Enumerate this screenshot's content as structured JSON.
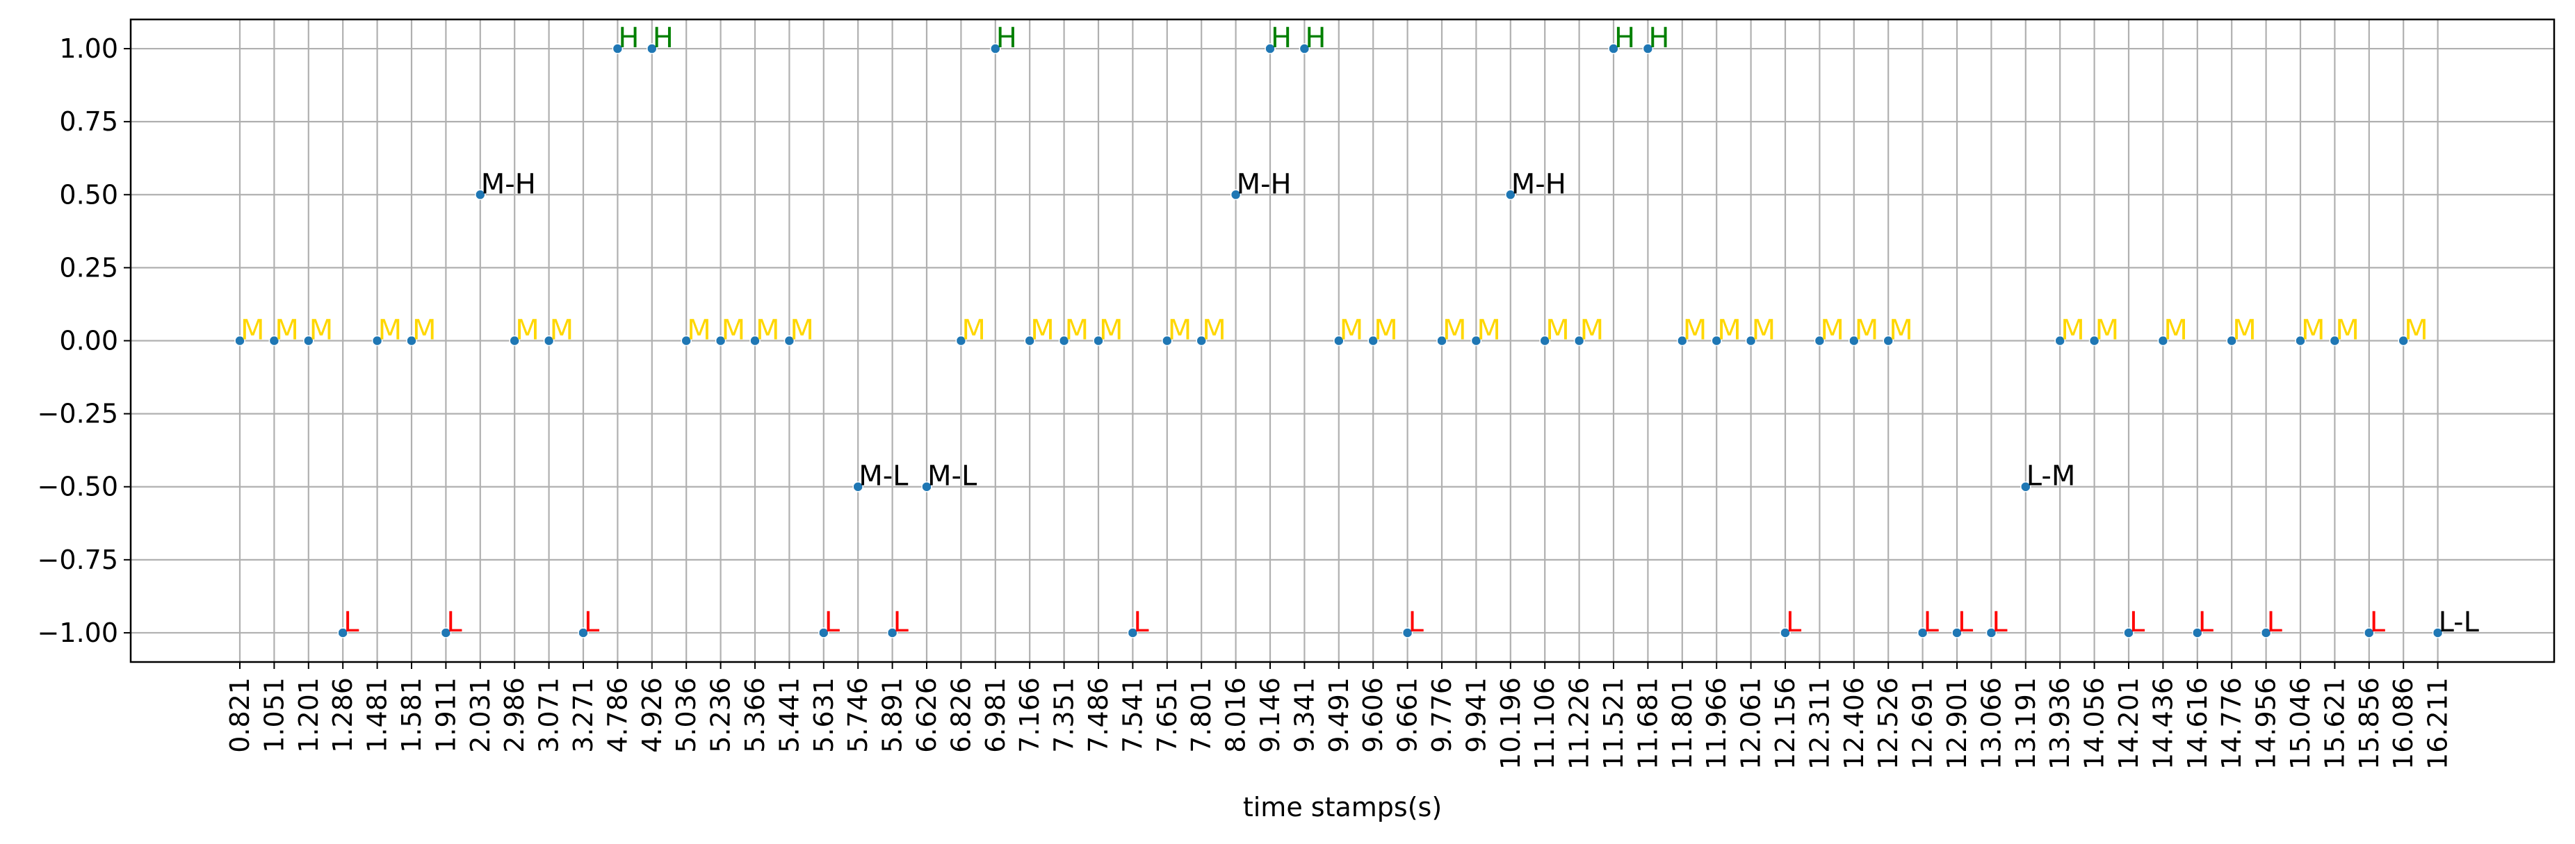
{
  "chart_data": {
    "type": "scatter",
    "title": "",
    "xlabel": "time stamps(s)",
    "ylabel": "",
    "ylim": [
      -1.1,
      1.1
    ],
    "yticks": [
      "1.00",
      "0.75",
      "0.50",
      "0.25",
      "0.00",
      "−0.25",
      "−0.50",
      "−0.75",
      "−1.00"
    ],
    "ytick_values": [
      1.0,
      0.75,
      0.5,
      0.25,
      0.0,
      -0.25,
      -0.5,
      -0.75,
      -1.0
    ],
    "x_categories": [
      "0.821",
      "1.051",
      "1.201",
      "1.286",
      "1.481",
      "1.581",
      "1.911",
      "2.031",
      "2.986",
      "3.071",
      "3.271",
      "4.786",
      "4.926",
      "5.036",
      "5.236",
      "5.366",
      "5.441",
      "5.631",
      "5.746",
      "5.891",
      "6.626",
      "6.826",
      "6.981",
      "7.166",
      "7.351",
      "7.486",
      "7.541",
      "7.651",
      "7.801",
      "8.016",
      "9.146",
      "9.341",
      "9.491",
      "9.606",
      "9.661",
      "9.776",
      "9.941",
      "10.196",
      "11.106",
      "11.226",
      "11.521",
      "11.681",
      "11.801",
      "11.966",
      "12.061",
      "12.156",
      "12.311",
      "12.406",
      "12.526",
      "12.691",
      "12.901",
      "13.066",
      "13.191",
      "13.936",
      "14.056",
      "14.201",
      "14.436",
      "14.616",
      "14.776",
      "14.956",
      "15.046",
      "15.621",
      "15.856",
      "16.086",
      "16.211"
    ],
    "values": [
      0,
      0,
      0,
      -1,
      0,
      0,
      -1,
      0.5,
      0,
      0,
      -1,
      1,
      1,
      0,
      0,
      0,
      0,
      -1,
      -0.5,
      -1,
      -0.5,
      0,
      1,
      0,
      0,
      0,
      -1,
      0,
      0,
      0.5,
      1,
      1,
      0,
      0,
      -1,
      0,
      0,
      0.5,
      0,
      0,
      1,
      1,
      0,
      0,
      0,
      -1,
      0,
      0,
      0,
      -1,
      -1,
      -1,
      -0.5,
      0,
      0,
      -1,
      0,
      -1,
      0,
      -1,
      0,
      0,
      -1,
      0,
      -1
    ],
    "labels": [
      "M",
      "M",
      "M",
      "L",
      "M",
      "M",
      "L",
      "M-H",
      "M",
      "M",
      "L",
      "H",
      "H",
      "M",
      "M",
      "M",
      "M",
      "L",
      "M-L",
      "L",
      "M-L",
      "M",
      "H",
      "M",
      "M",
      "M",
      "L",
      "M",
      "M",
      "M-H",
      "H",
      "H",
      "M",
      "M",
      "L",
      "M",
      "M",
      "M-H",
      "M",
      "M",
      "H",
      "H",
      "M",
      "M",
      "M",
      "L",
      "M",
      "M",
      "M",
      "L",
      "L",
      "L",
      "L-M",
      "M",
      "M",
      "L",
      "M",
      "L",
      "M",
      "L",
      "M",
      "M",
      "L",
      "M",
      "L-L"
    ],
    "grid": true,
    "label_colors": {
      "H": "#008000",
      "M": "#ffd700",
      "L": "#ff0000",
      "transition": "#000000"
    },
    "marker_color": "#1f77b4"
  }
}
